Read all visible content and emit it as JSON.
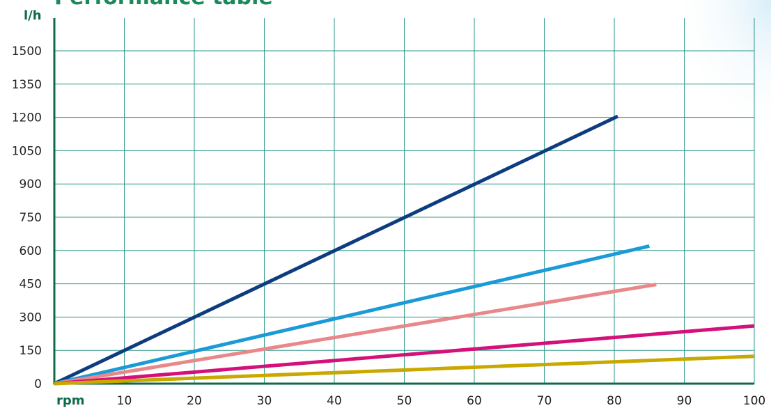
{
  "chart_data": {
    "type": "line",
    "title": "Performance table",
    "xlabel": "rpm",
    "ylabel": "l/h",
    "xlim": [
      0,
      100
    ],
    "ylim": [
      0,
      1500
    ],
    "xticks": [
      10,
      20,
      30,
      40,
      50,
      60,
      70,
      80,
      90,
      100
    ],
    "yticks": [
      0,
      150,
      300,
      450,
      600,
      750,
      900,
      1050,
      1200,
      1350,
      1500
    ],
    "grid": true,
    "series": [
      {
        "color": "#0d3d7f",
        "points": [
          [
            0,
            0
          ],
          [
            80.5,
            1205
          ]
        ]
      },
      {
        "color": "#1a9ad6",
        "points": [
          [
            0,
            0
          ],
          [
            85,
            620
          ]
        ]
      },
      {
        "color": "#e8888a",
        "points": [
          [
            0,
            0
          ],
          [
            86,
            447
          ]
        ]
      },
      {
        "color": "#d4117a",
        "points": [
          [
            0,
            0
          ],
          [
            100,
            260
          ]
        ]
      },
      {
        "color": "#c9a800",
        "points": [
          [
            0,
            0
          ],
          [
            100,
            123
          ]
        ]
      }
    ]
  },
  "colors": {
    "title": "#1a8a5a",
    "axis_unit": "#0c6b4a",
    "grid": "#2e9a8a",
    "axis": "#0c6b4a"
  }
}
